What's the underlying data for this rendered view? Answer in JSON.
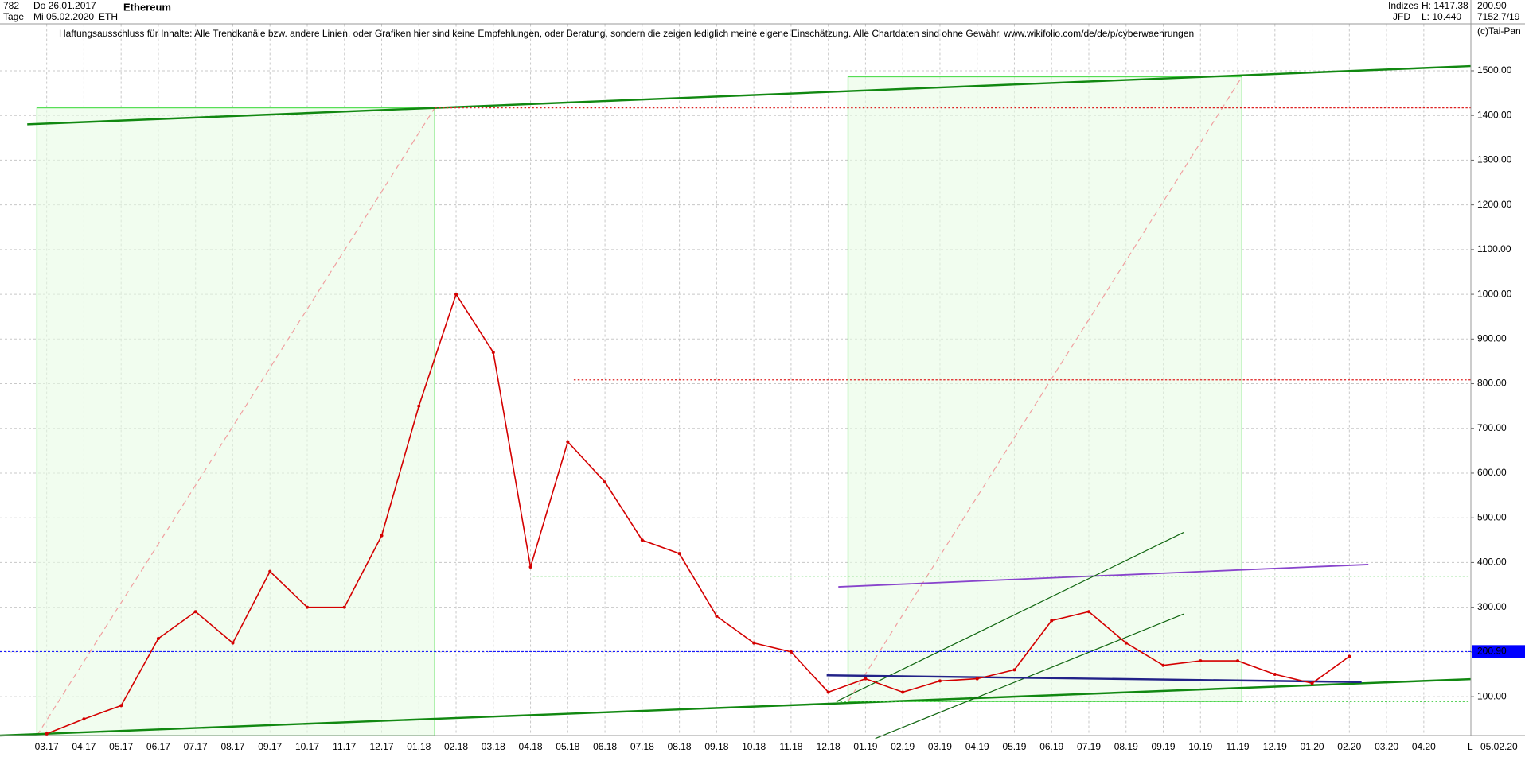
{
  "header": {
    "count": "782",
    "start_date": "Do 26.01.2017",
    "period": "Tage",
    "end_date": "Mi 05.02.2020",
    "symbol": "ETH",
    "group": "Indizes",
    "broker": "JFD",
    "high": "H: 1417.38",
    "low": "L: 10.440",
    "last": "200.90",
    "extra": "7152.7/19",
    "copyright": "(c)Tai-Pan",
    "bottom_date": "05.02.20",
    "bottom_mark": "L"
  },
  "chart_data": {
    "type": "line",
    "title": "Ethereum",
    "subtitle": "Haftungsausschluss für Inhalte: Alle Trendkanäle bzw. andere Linien, oder Grafiken hier sind keine Empfehlungen, oder Beratung, sondern die zeigen lediglich meine eigene Einschätzung. Alle Chartdaten sind ohne Gewähr.  www.wikifolio.com/de/de/p/cyberwaehrungen",
    "categories": [
      "03.17",
      "04.17",
      "05.17",
      "06.17",
      "07.17",
      "08.17",
      "09.17",
      "10.17",
      "11.17",
      "12.17",
      "01.18",
      "02.18",
      "03.18",
      "04.18",
      "05.18",
      "06.18",
      "07.18",
      "08.18",
      "09.18",
      "10.18",
      "11.18",
      "12.18",
      "01.19",
      "02.19",
      "03.19",
      "04.19",
      "05.19",
      "06.19",
      "07.19",
      "08.19",
      "09.19",
      "10.19",
      "11.19",
      "12.19",
      "01.20",
      "02.20",
      "03.20",
      "04.20"
    ],
    "series": [
      {
        "name": "ETH",
        "color": "#d40000",
        "values": [
          17,
          50,
          80,
          230,
          290,
          220,
          380,
          300,
          300,
          460,
          750,
          1000,
          870,
          390,
          670,
          580,
          450,
          420,
          280,
          220,
          200,
          110,
          140,
          110,
          135,
          140,
          160,
          270,
          290,
          220,
          170,
          180,
          180,
          150,
          130,
          190,
          null,
          null
        ]
      }
    ],
    "ylim": [
      13,
      1604
    ],
    "yticks": [
      {
        "value": 100,
        "label": "100.00"
      },
      {
        "value": 200,
        "label": "200.00"
      },
      {
        "value": 300,
        "label": "300.00"
      },
      {
        "value": 400,
        "label": "400.00"
      },
      {
        "value": 500,
        "label": "500.00"
      },
      {
        "value": 600,
        "label": "600.00"
      },
      {
        "value": 700,
        "label": "700.00"
      },
      {
        "value": 800,
        "label": "800.00"
      },
      {
        "value": 900,
        "label": "900.00"
      },
      {
        "value": 1000,
        "label": "1000.00"
      },
      {
        "value": 1100,
        "label": "1100.00"
      },
      {
        "value": 1200,
        "label": "1200.00"
      },
      {
        "value": 1300,
        "label": "1300.00"
      },
      {
        "value": 1400,
        "label": "1400.00"
      },
      {
        "value": 1500,
        "label": "1500.00"
      }
    ],
    "price_line": {
      "value": 200.9,
      "label": "200.90",
      "color": "#0000ff"
    },
    "grid": true
  }
}
